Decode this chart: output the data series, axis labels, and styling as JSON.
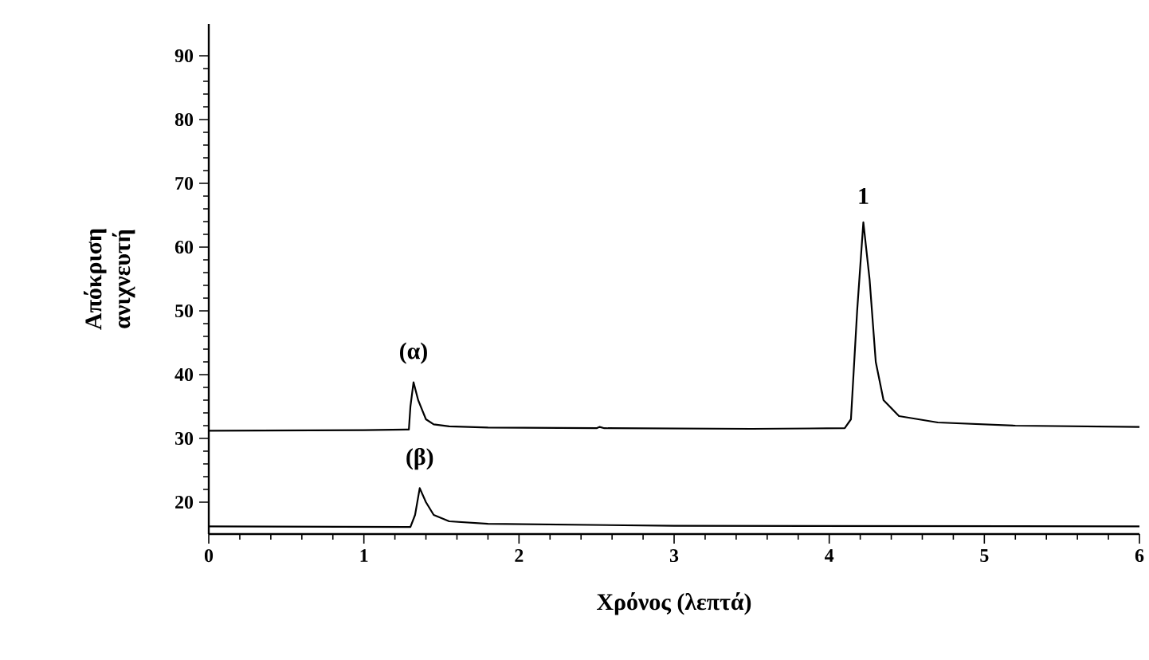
{
  "chart_data": {
    "type": "line",
    "xlabel": "Χρόνος (λεπτά)",
    "ylabel": "Απόκριση ανιχνευτή",
    "xlim": [
      0,
      6
    ],
    "ylim": [
      15,
      95
    ],
    "xticks": [
      0,
      1,
      2,
      3,
      4,
      5,
      6
    ],
    "yticks": [
      20,
      30,
      40,
      50,
      60,
      70,
      80,
      90
    ],
    "grid": false,
    "marker": "none",
    "line_style": "solid",
    "series": [
      {
        "color": "#000000",
        "x": [
          0,
          1.0,
          1.29,
          1.3,
          1.32,
          1.35,
          1.4,
          1.45,
          1.55,
          1.8,
          2.5,
          2.52,
          2.55,
          3.5,
          4.1,
          4.14,
          4.18,
          4.22,
          4.26,
          4.3,
          4.35,
          4.45,
          4.7,
          5.2,
          6
        ],
        "values": [
          31.2,
          31.3,
          31.4,
          35,
          38.8,
          36,
          33,
          32.2,
          31.9,
          31.7,
          31.6,
          31.8,
          31.6,
          31.5,
          31.6,
          33,
          50,
          63.9,
          55,
          42,
          36,
          33.5,
          32.5,
          32,
          31.8
        ]
      },
      {
        "color": "#000000",
        "x": [
          0,
          1.3,
          1.33,
          1.36,
          1.4,
          1.45,
          1.55,
          1.8,
          3,
          6
        ],
        "values": [
          16.2,
          16.1,
          18,
          22.2,
          20,
          18,
          17,
          16.6,
          16.3,
          16.2
        ]
      }
    ],
    "annotations": [
      {
        "text": "(α)",
        "x": 1.32,
        "y": 38.8
      },
      {
        "text": "1",
        "x": 4.22,
        "y": 63.9
      },
      {
        "text": "(β)",
        "x": 1.36,
        "y": 22.2
      }
    ]
  }
}
